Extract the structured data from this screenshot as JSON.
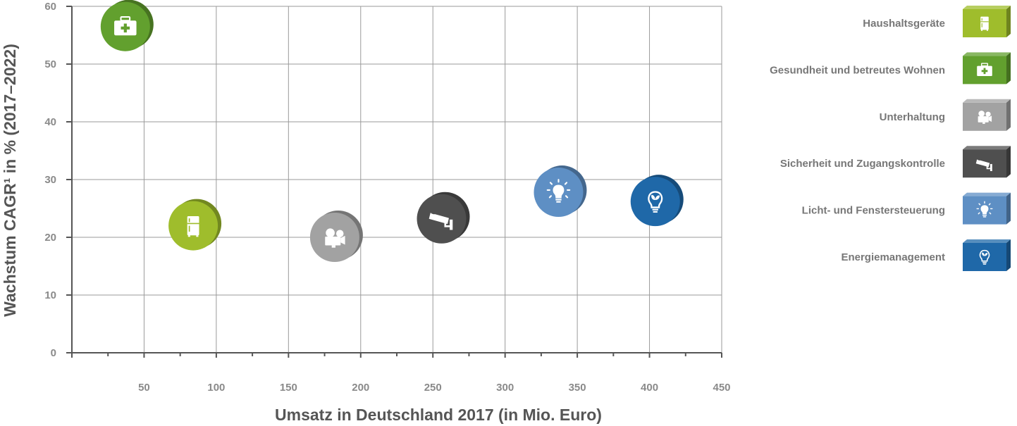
{
  "chart_data": {
    "type": "scatter",
    "xlabel": "Umsatz in Deutschland 2017 (in Mio. Euro)",
    "ylabel": "Wachstum CAGR¹ in % (2017–2022)",
    "xlim": [
      0,
      450
    ],
    "ylim": [
      0,
      60
    ],
    "x_ticks": [
      50,
      100,
      150,
      200,
      250,
      300,
      350,
      400,
      450
    ],
    "y_ticks": [
      0,
      10,
      20,
      30,
      40,
      50,
      60
    ],
    "grid": true,
    "legend_position": "right",
    "series": [
      {
        "name": "Haushaltsgeräte",
        "icon": "fridge-icon",
        "color": "#9fbd2c",
        "x": 84,
        "y": 22
      },
      {
        "name": "Gesundheit und betreutes Wohnen",
        "icon": "first-aid-kit-icon",
        "color": "#62a02e",
        "x": 37,
        "y": 56.5
      },
      {
        "name": "Unterhaltung",
        "icon": "movie-camera-icon",
        "color": "#a2a2a2",
        "x": 182,
        "y": 20
      },
      {
        "name": "Sicherheit und Zugangskontrolle",
        "icon": "security-camera-icon",
        "color": "#4f4f4f",
        "x": 256,
        "y": 23.2
      },
      {
        "name": "Licht- und Fenstersteuerung",
        "icon": "light-bulb-icon",
        "color": "#5e8fc4",
        "x": 337,
        "y": 27.8
      },
      {
        "name": "Energiemanagement",
        "icon": "eco-bulb-icon",
        "color": "#1f68a8",
        "x": 404,
        "y": 26.2
      }
    ]
  }
}
